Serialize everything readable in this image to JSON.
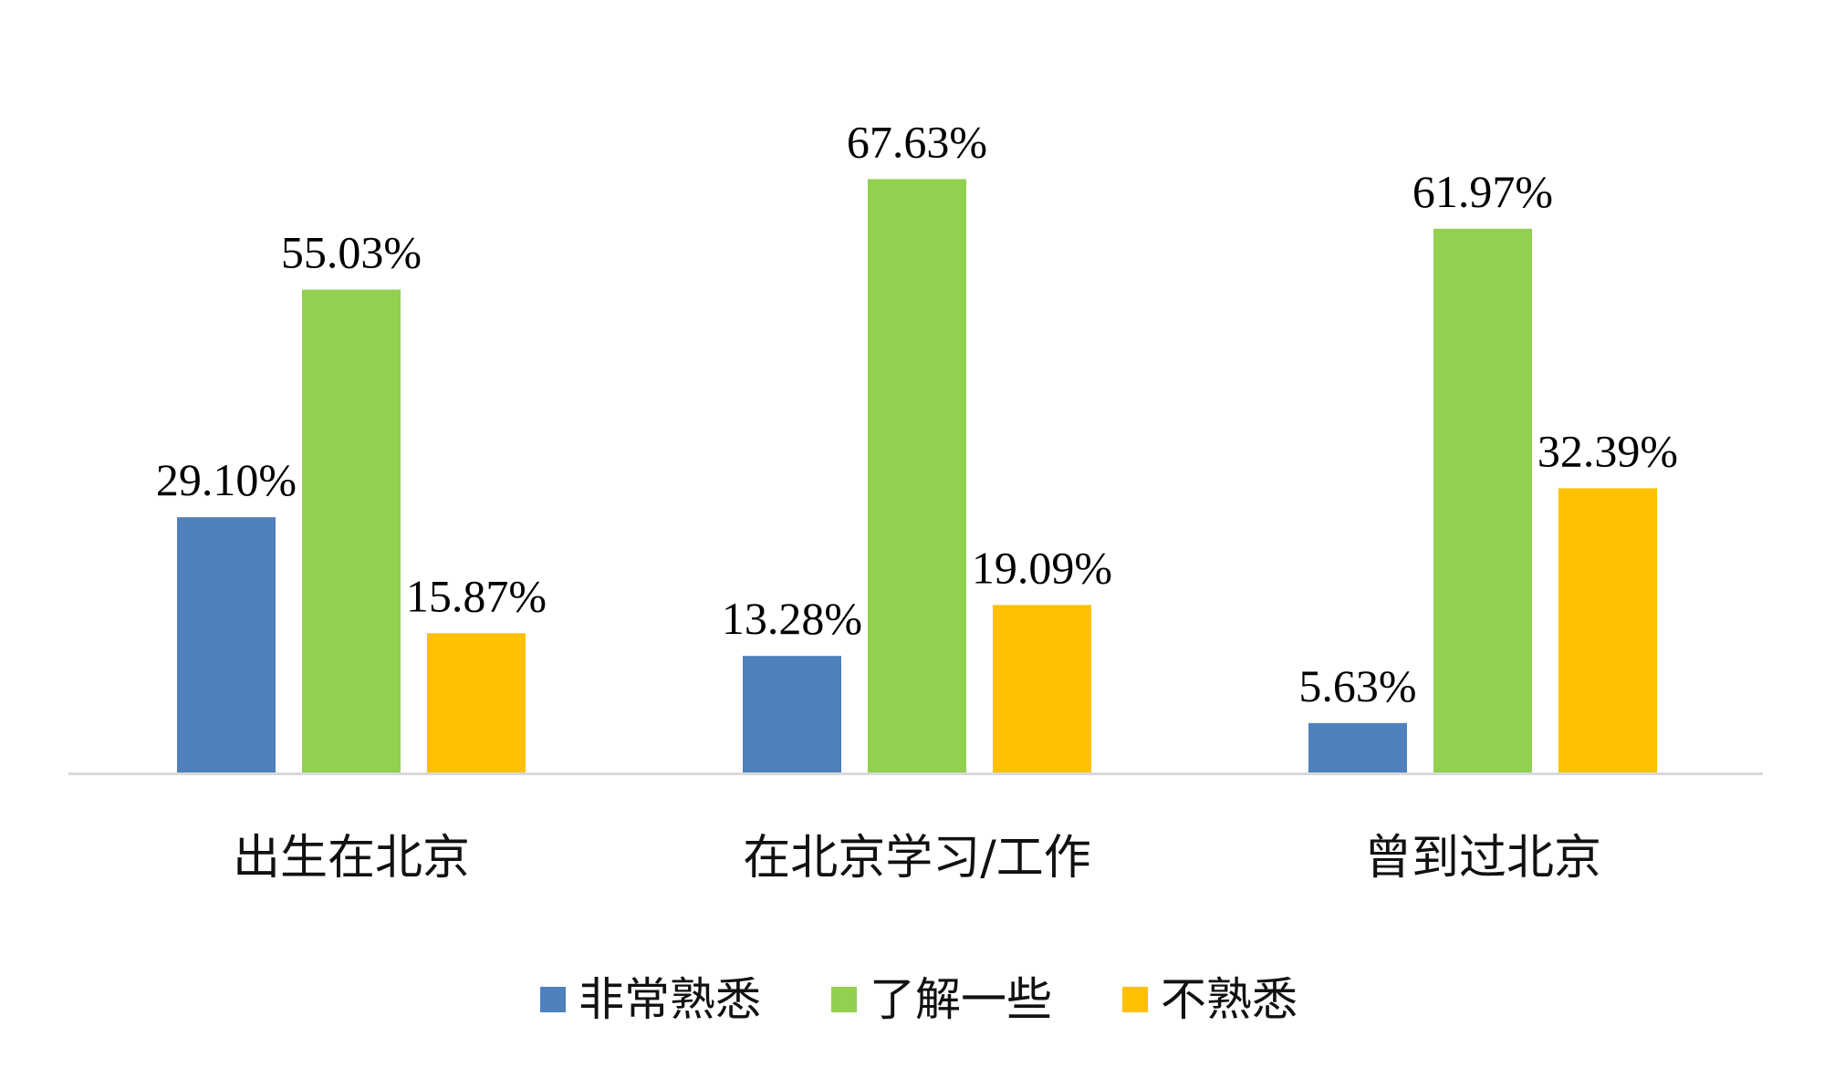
{
  "chart_data": {
    "type": "bar",
    "title": "",
    "xlabel": "",
    "ylabel": "",
    "ylim": [
      0,
      80
    ],
    "grid": false,
    "legend_position": "bottom",
    "categories": [
      "出生在北京",
      "在北京学习/工作",
      "曾到过北京"
    ],
    "series": [
      {
        "name": "非常熟悉",
        "color": "#4f81bd",
        "values": [
          29.1,
          13.28,
          5.63
        ],
        "labels": [
          "29.10%",
          "13.28%",
          "5.63%"
        ]
      },
      {
        "name": "了解一些",
        "color": "#92d050",
        "values": [
          55.03,
          67.63,
          61.97
        ],
        "labels": [
          "55.03%",
          "67.63%",
          "61.97%"
        ]
      },
      {
        "name": "不熟悉",
        "color": "#ffc000",
        "values": [
          15.87,
          19.09,
          32.39
        ],
        "labels": [
          "15.87%",
          "19.09%",
          "32.39%"
        ]
      }
    ],
    "axis_color": "#d9d9d9"
  }
}
